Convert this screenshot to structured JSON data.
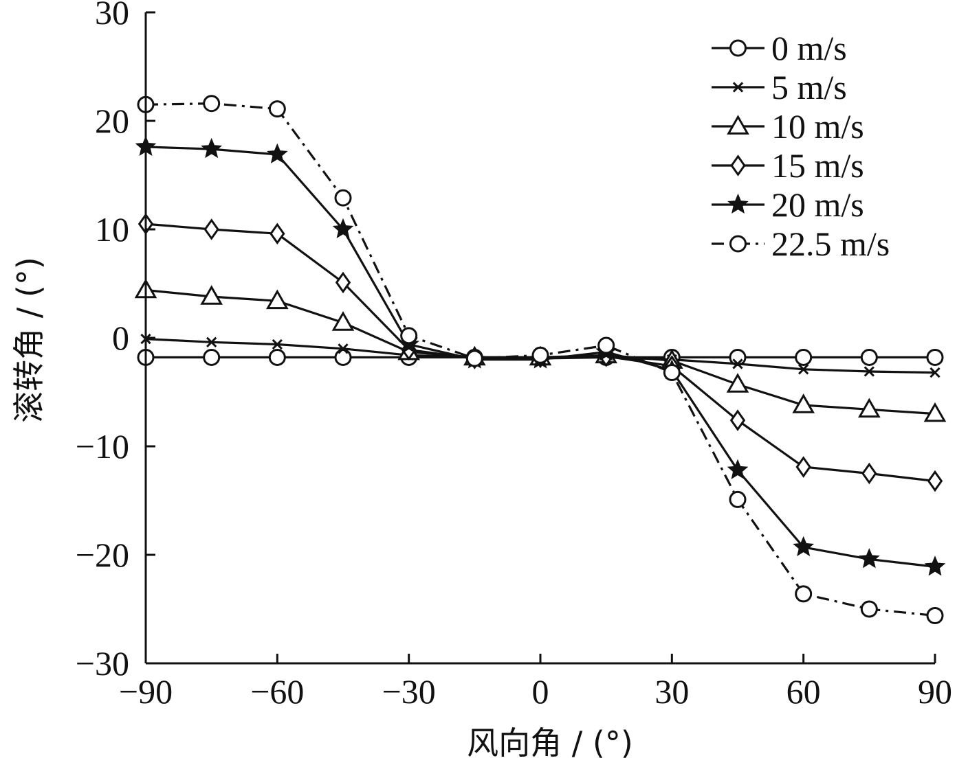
{
  "chart_data": {
    "type": "line",
    "title": "",
    "xlabel": "风向角 / (°)",
    "ylabel": "滚转角 / (°)",
    "xlim": [
      -90,
      90
    ],
    "ylim": [
      -30,
      30
    ],
    "xticks": [
      -90,
      -60,
      -30,
      0,
      30,
      60,
      90
    ],
    "yticks": [
      -30,
      -20,
      -10,
      0,
      10,
      20,
      30
    ],
    "xtick_labels": [
      "−90",
      "−60",
      "−30",
      "0",
      "30",
      "60",
      "90"
    ],
    "ytick_labels": [
      "−30",
      "−20",
      "−10",
      "0",
      "10",
      "20",
      "30"
    ],
    "grid": false,
    "legend_position": "top-right",
    "x": [
      -90,
      -75,
      -60,
      -45,
      -30,
      -15,
      0,
      15,
      30,
      45,
      60,
      75,
      90
    ],
    "series": [
      {
        "name": "0 m/s",
        "marker": "circle",
        "dash": "solid",
        "values": [
          -1.8,
          -1.8,
          -1.8,
          -1.8,
          -1.8,
          -1.8,
          -1.8,
          -1.8,
          -1.8,
          -1.8,
          -1.8,
          -1.8,
          -1.8
        ]
      },
      {
        "name": "5 m/s",
        "marker": "x",
        "dash": "solid",
        "values": [
          -0.1,
          -0.4,
          -0.6,
          -1.0,
          -1.6,
          -1.8,
          -1.9,
          -1.8,
          -2.0,
          -2.4,
          -2.9,
          -3.1,
          -3.2
        ]
      },
      {
        "name": "10 m/s",
        "marker": "triangle",
        "dash": "solid",
        "values": [
          4.4,
          3.8,
          3.4,
          1.4,
          -1.3,
          -1.8,
          -1.8,
          -1.6,
          -2.1,
          -4.3,
          -6.2,
          -6.6,
          -7.0
        ]
      },
      {
        "name": "15 m/s",
        "marker": "diamond",
        "dash": "solid",
        "values": [
          10.5,
          10.0,
          9.6,
          5.1,
          -1.1,
          -1.9,
          -1.8,
          -1.7,
          -2.6,
          -7.6,
          -11.9,
          -12.5,
          -13.2
        ]
      },
      {
        "name": "20 m/s",
        "marker": "star",
        "dash": "solid",
        "values": [
          17.6,
          17.4,
          16.9,
          10.0,
          -0.6,
          -2.0,
          -2.0,
          -1.3,
          -3.0,
          -12.2,
          -19.3,
          -20.4,
          -21.1
        ]
      },
      {
        "name": "22.5 m/s",
        "marker": "circle",
        "dash": "dashdot",
        "values": [
          21.5,
          21.6,
          21.1,
          12.9,
          0.2,
          -1.9,
          -1.6,
          -0.7,
          -3.2,
          -14.9,
          -23.6,
          -25.0,
          -25.6
        ]
      }
    ]
  }
}
